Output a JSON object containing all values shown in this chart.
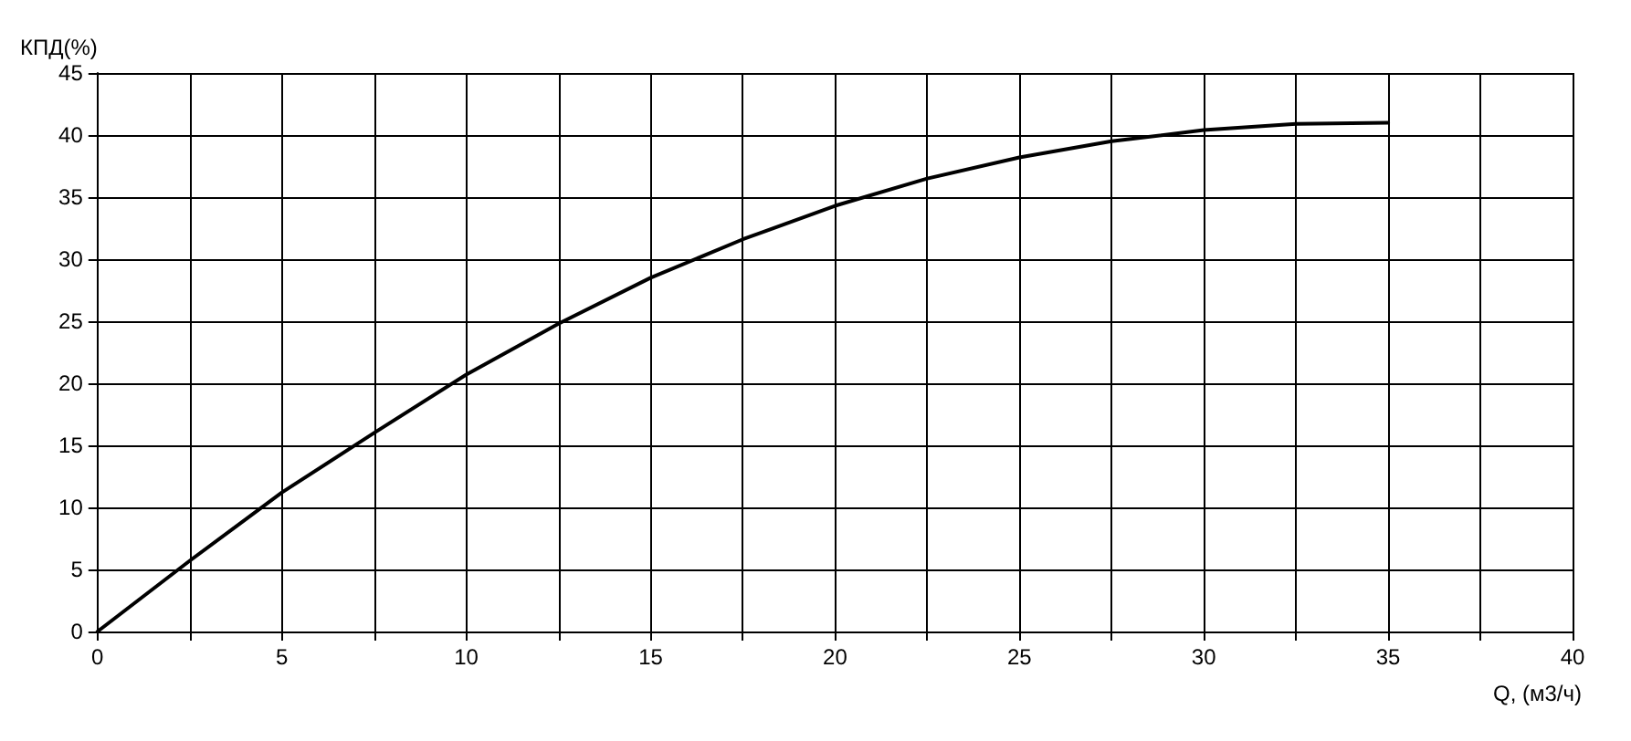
{
  "chart_data": {
    "type": "line",
    "xlabel": "Q, (м3/ч)",
    "ylabel": "КПД(%)",
    "x": [
      0,
      2.5,
      5,
      7.5,
      10,
      12.5,
      15,
      17.5,
      20,
      22.5,
      25,
      27.5,
      30,
      32.5,
      35
    ],
    "series": [
      {
        "color": "#000000",
        "values": [
          0,
          5.7,
          11.2,
          16,
          20.7,
          24.8,
          28.5,
          31.6,
          34.3,
          36.5,
          38.2,
          39.5,
          40.4,
          40.9,
          41
        ]
      }
    ],
    "xlim": [
      0,
      40
    ],
    "xticks": [
      0,
      {
        "value": 2.5,
        "label": null
      },
      5,
      {
        "value": 7.5,
        "label": null
      },
      10,
      {
        "value": 12.5,
        "label": null
      },
      15,
      {
        "value": 17.5,
        "label": null
      },
      20,
      {
        "value": 22.5,
        "label": null
      },
      25,
      {
        "value": 27.5,
        "label": null
      },
      30,
      {
        "value": 32.5,
        "label": null
      },
      35,
      {
        "value": 37.5,
        "label": null
      },
      40
    ],
    "ylim": [
      0,
      45
    ],
    "yticks": [
      0,
      5,
      10,
      15,
      20,
      25,
      30,
      35,
      40,
      45
    ],
    "grid": true,
    "marker": "none",
    "line_style": "solid"
  }
}
